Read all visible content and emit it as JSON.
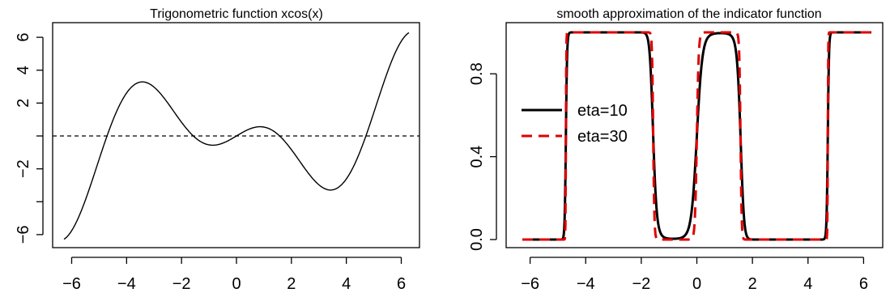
{
  "chart_data": [
    {
      "type": "line",
      "title": "Trigonometric function xcos(x)",
      "xlabel": "",
      "ylabel": "",
      "xlim": [
        -6.28,
        6.28
      ],
      "ylim": [
        -6.3,
        6.3
      ],
      "xticks": [
        -6,
        -4,
        -2,
        0,
        2,
        4,
        6
      ],
      "xtick_labels": [
        "−6",
        "−4",
        "−2",
        "0",
        "2",
        "4",
        "6"
      ],
      "yticks": [
        -6,
        -4,
        -2,
        0,
        2,
        4,
        6
      ],
      "ytick_labels": [
        "−6",
        "",
        "−2",
        "",
        "2",
        "4",
        "6"
      ],
      "grid": false,
      "reference_line": {
        "y": 0,
        "style": "dashed",
        "color": "#000000"
      },
      "series": [
        {
          "color": "#000000",
          "style": "solid",
          "x": [
            -6.28,
            -6.0,
            -5.5,
            -5.0,
            -4.5,
            -4.0,
            -3.5,
            -3.43,
            -3.0,
            -2.5,
            -2.0,
            -1.5,
            -1.0,
            -0.86,
            -0.5,
            0.0,
            0.5,
            0.86,
            1.0,
            1.5,
            2.0,
            2.5,
            3.0,
            3.43,
            3.5,
            4.0,
            4.5,
            5.0,
            5.5,
            6.0,
            6.28
          ],
          "y": [
            -6.28,
            -5.76,
            -3.89,
            -1.42,
            0.95,
            2.61,
            3.28,
            3.29,
            2.97,
            2.0,
            0.83,
            -0.11,
            -0.54,
            -0.56,
            -0.44,
            0.0,
            0.44,
            0.56,
            0.54,
            0.11,
            -0.83,
            -2.0,
            -2.97,
            -3.29,
            -3.28,
            -2.61,
            -0.95,
            1.42,
            3.89,
            5.76,
            6.28
          ]
        }
      ]
    },
    {
      "type": "line",
      "title": "smooth approximation of the indicator function",
      "xlabel": "",
      "ylabel": "",
      "xlim": [
        -6.28,
        6.28
      ],
      "ylim": [
        0,
        1
      ],
      "xticks": [
        -6,
        -4,
        -2,
        0,
        2,
        4,
        6
      ],
      "xtick_labels": [
        "−6",
        "−4",
        "−2",
        "0",
        "2",
        "4",
        "6"
      ],
      "yticks": [
        0,
        0.4,
        0.8
      ],
      "ytick_labels": [
        "0.0",
        "0.4",
        "0.8"
      ],
      "grid": false,
      "legend": {
        "placement": "left"
      },
      "series": [
        {
          "name": "eta=10",
          "eta": 10,
          "color": "#000000",
          "style": "solid"
        },
        {
          "name": "eta=30",
          "eta": 30,
          "color": "#df0000",
          "style": "dashed"
        }
      ]
    }
  ]
}
